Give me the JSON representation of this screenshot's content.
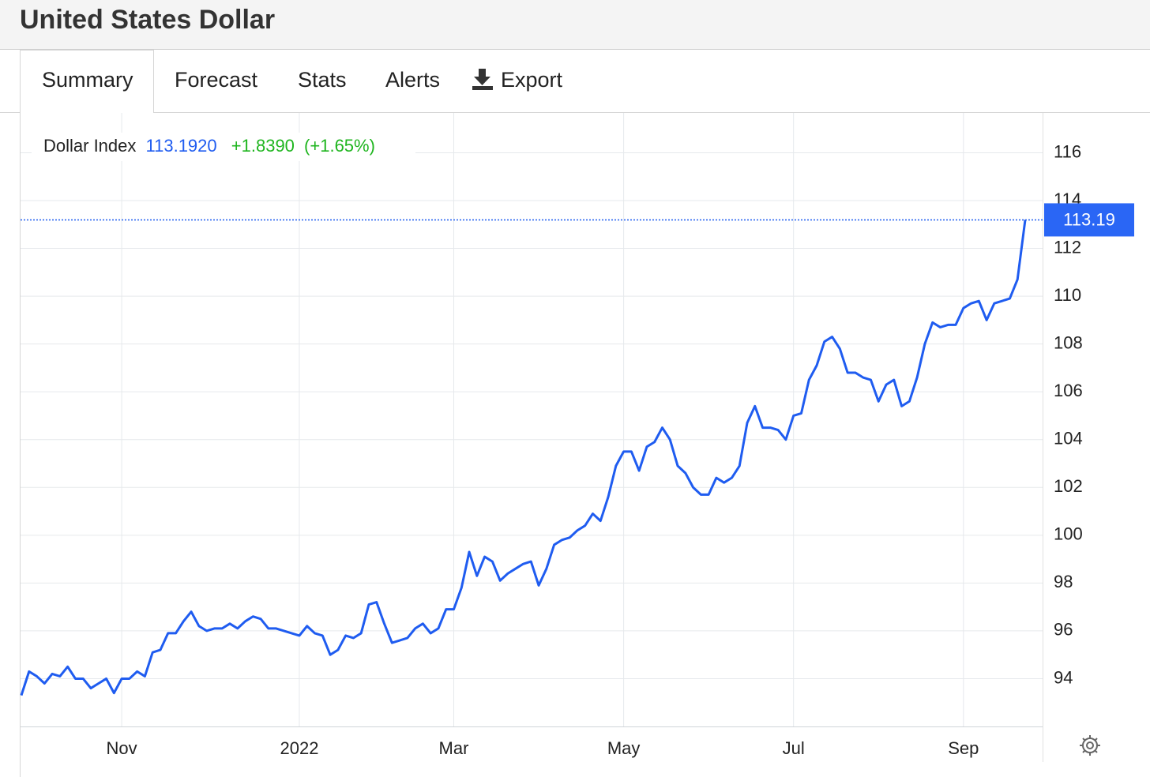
{
  "header": {
    "title": "United States Dollar"
  },
  "tabs": [
    "Summary",
    "Forecast",
    "Stats",
    "Alerts",
    "Export"
  ],
  "chart_data": {
    "type": "line",
    "quote": {
      "name": "Dollar Index",
      "last": "113.1920",
      "change": "+1.8390",
      "change_pct": "(+1.65%)"
    },
    "categories": [
      null,
      null,
      null,
      null,
      null,
      null,
      null,
      null,
      null,
      null,
      null,
      null,
      null,
      "Nov",
      null,
      null,
      null,
      null,
      null,
      null,
      null,
      null,
      null,
      null,
      null,
      null,
      null,
      null,
      null,
      null,
      null,
      null,
      null,
      null,
      null,
      null,
      "2022",
      null,
      null,
      null,
      null,
      null,
      null,
      null,
      null,
      null,
      null,
      null,
      null,
      null,
      null,
      null,
      null,
      null,
      null,
      null,
      "Mar",
      null,
      null,
      null,
      null,
      null,
      null,
      null,
      null,
      null,
      null,
      null,
      null,
      null,
      null,
      null,
      null,
      null,
      null,
      null,
      null,
      null,
      "May",
      null,
      null,
      null,
      null,
      null,
      null,
      null,
      null,
      null,
      null,
      null,
      null,
      null,
      null,
      null,
      null,
      null,
      null,
      null,
      null,
      null,
      "Jul",
      null,
      null,
      null,
      null,
      null,
      null,
      null,
      null,
      null,
      null,
      null,
      null,
      null,
      null,
      null,
      null,
      null,
      null,
      null,
      null,
      null,
      "Sep",
      null,
      null,
      null,
      null,
      null,
      null,
      null,
      null
    ],
    "series": [
      {
        "name": "Dollar Index",
        "color": "#1f5cf0",
        "values": [
          93.3,
          94.3,
          94.1,
          93.8,
          94.2,
          94.1,
          94.5,
          94.0,
          94.0,
          93.6,
          93.8,
          94.0,
          93.4,
          94.0,
          94.0,
          94.3,
          94.1,
          95.1,
          95.2,
          95.9,
          95.9,
          96.4,
          96.8,
          96.2,
          96.0,
          96.1,
          96.1,
          96.3,
          96.1,
          96.4,
          96.6,
          96.5,
          96.1,
          96.1,
          96.0,
          95.9,
          95.8,
          96.2,
          95.9,
          95.8,
          95.0,
          95.2,
          95.8,
          95.7,
          95.9,
          97.1,
          97.2,
          96.3,
          95.5,
          95.6,
          95.7,
          96.1,
          96.3,
          95.9,
          96.1,
          96.9,
          96.9,
          97.8,
          99.3,
          98.3,
          99.1,
          98.9,
          98.1,
          98.4,
          98.6,
          98.8,
          98.9,
          97.9,
          98.6,
          99.6,
          99.8,
          99.9,
          100.2,
          100.4,
          100.9,
          100.6,
          101.6,
          102.9,
          103.5,
          103.5,
          102.7,
          103.7,
          103.9,
          104.5,
          104.0,
          102.9,
          102.6,
          102.0,
          101.7,
          101.7,
          102.4,
          102.2,
          102.4,
          102.9,
          104.7,
          105.4,
          104.5,
          104.5,
          104.4,
          104.0,
          105.0,
          105.1,
          106.5,
          107.1,
          108.1,
          108.3,
          107.8,
          106.8,
          106.8,
          106.6,
          106.5,
          105.6,
          106.3,
          106.5,
          105.4,
          105.6,
          106.6,
          108.0,
          108.9,
          108.7,
          108.8,
          108.8,
          109.5,
          109.7,
          109.8,
          109.0,
          109.7,
          109.8,
          109.9,
          110.7,
          113.192
        ],
        "last_value_label": "113.19"
      }
    ],
    "ylim": [
      92,
      117.6
    ],
    "yticks": [
      94,
      96,
      98,
      100,
      102,
      104,
      106,
      108,
      110,
      112,
      114,
      116
    ],
    "grid": true
  }
}
